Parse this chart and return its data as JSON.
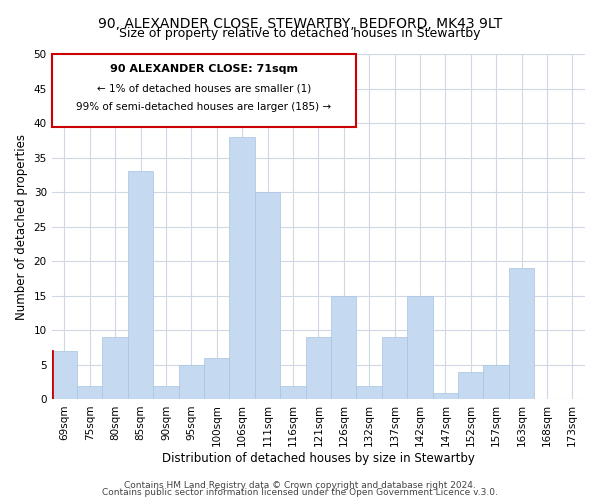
{
  "title": "90, ALEXANDER CLOSE, STEWARTBY, BEDFORD, MK43 9LT",
  "subtitle": "Size of property relative to detached houses in Stewartby",
  "xlabel": "Distribution of detached houses by size in Stewartby",
  "ylabel": "Number of detached properties",
  "bin_labels": [
    "69sqm",
    "75sqm",
    "80sqm",
    "85sqm",
    "90sqm",
    "95sqm",
    "100sqm",
    "106sqm",
    "111sqm",
    "116sqm",
    "121sqm",
    "126sqm",
    "132sqm",
    "137sqm",
    "142sqm",
    "147sqm",
    "152sqm",
    "157sqm",
    "163sqm",
    "168sqm",
    "173sqm"
  ],
  "bar_heights": [
    7,
    2,
    9,
    33,
    2,
    5,
    6,
    38,
    30,
    2,
    9,
    15,
    2,
    9,
    15,
    1,
    4,
    5,
    19,
    0,
    0
  ],
  "bar_color": "#c5d9f0",
  "bar_edge_color": "#a8c4e0",
  "highlight_left_edge_color": "#cc0000",
  "ylim": [
    0,
    50
  ],
  "yticks": [
    0,
    5,
    10,
    15,
    20,
    25,
    30,
    35,
    40,
    45,
    50
  ],
  "annotation_title": "90 ALEXANDER CLOSE: 71sqm",
  "annotation_line1": "← 1% of detached houses are smaller (1)",
  "annotation_line2": "99% of semi-detached houses are larger (185) →",
  "annotation_box_edgecolor": "#cc0000",
  "annotation_box_facecolor": "#ffffff",
  "footer_line1": "Contains HM Land Registry data © Crown copyright and database right 2024.",
  "footer_line2": "Contains public sector information licensed under the Open Government Licence v.3.0.",
  "background_color": "#ffffff",
  "grid_color": "#d0d8e8",
  "title_fontsize": 10,
  "subtitle_fontsize": 9,
  "axis_label_fontsize": 8.5,
  "tick_fontsize": 7.5,
  "footer_fontsize": 6.5
}
